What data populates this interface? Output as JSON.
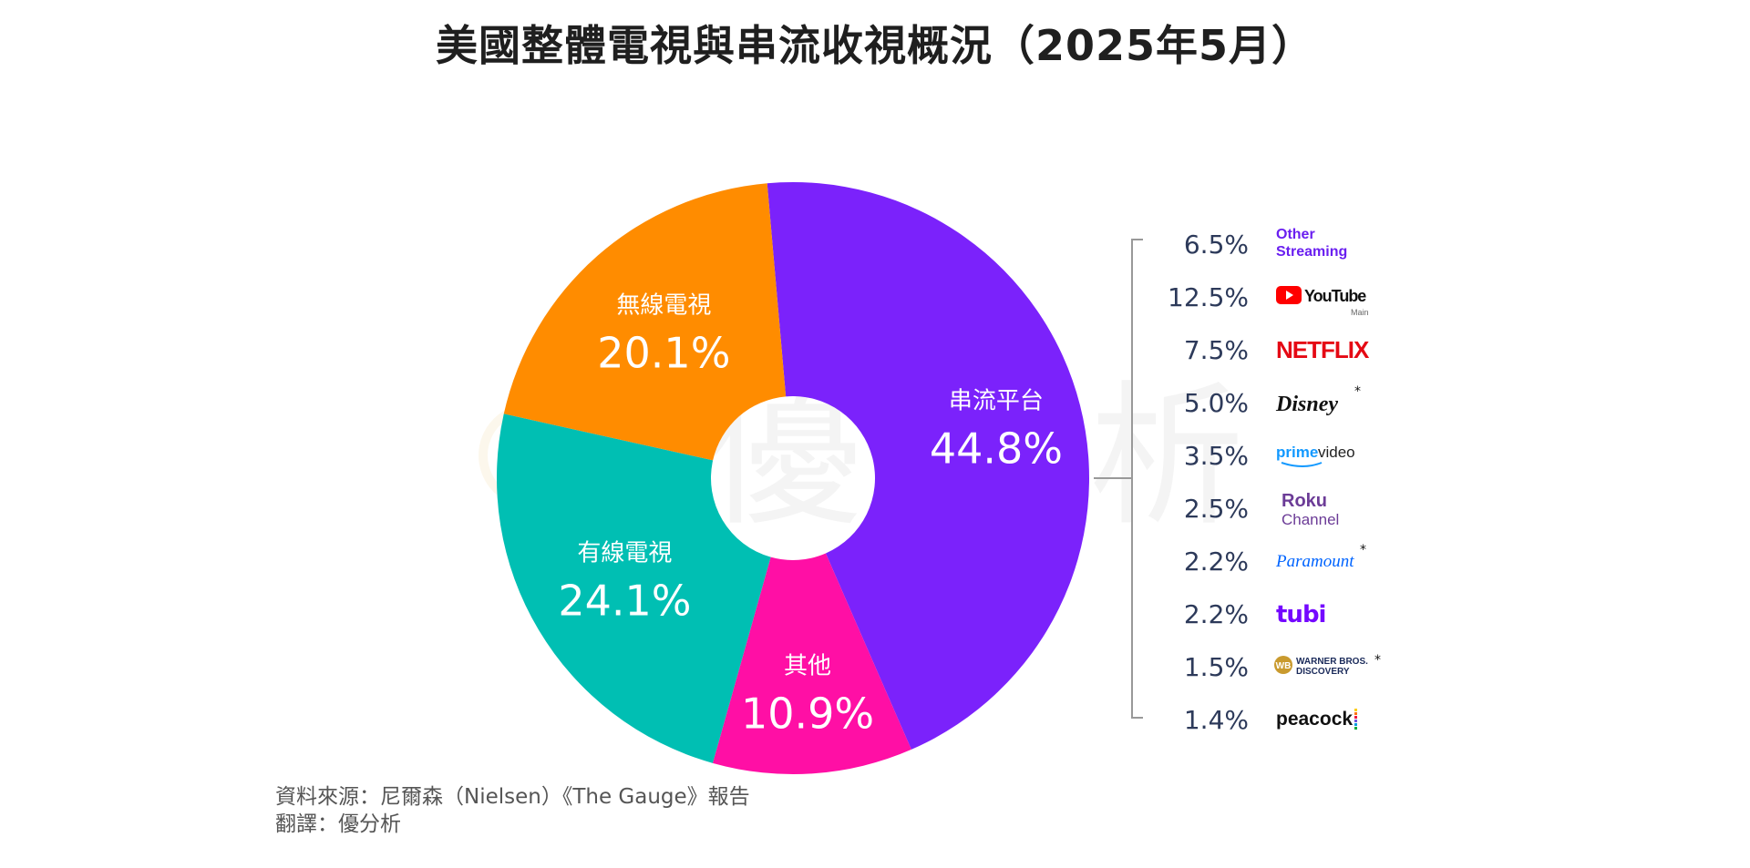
{
  "title": "美國整體電視與串流收視概況（2025年5月）",
  "watermark": "優分析",
  "colors": {
    "streaming": "#7b22fb",
    "broadcast": "#ff8c00",
    "cable": "#00bfb3",
    "other": "#ff0fa5",
    "breakdown_text": "#2d3a5a",
    "bracket": "#999999"
  },
  "chart_data": {
    "type": "pie",
    "segments": [
      {
        "key": "streaming",
        "label": "串流平台",
        "value": 44.8,
        "value_label": "44.8%"
      },
      {
        "key": "other",
        "label": "其他",
        "value": 10.9,
        "value_label": "10.9%"
      },
      {
        "key": "cable",
        "label": "有線電視",
        "value": 24.1,
        "value_label": "24.1%"
      },
      {
        "key": "broadcast",
        "label": "無線電視",
        "value": 20.1,
        "value_label": "20.1%"
      }
    ],
    "streaming_breakdown": [
      {
        "platform": "Other Streaming",
        "value": 6.5,
        "value_label": "6.5%",
        "icon": "other-streaming-logo"
      },
      {
        "platform": "YouTube",
        "value": 12.5,
        "value_label": "12.5%",
        "icon": "youtube-logo",
        "sub": "Main"
      },
      {
        "platform": "NETFLIX",
        "value": 7.5,
        "value_label": "7.5%",
        "icon": "netflix-logo"
      },
      {
        "platform": "Disney",
        "value": 5.0,
        "value_label": "5.0%",
        "icon": "disney-logo"
      },
      {
        "platform": "prime video",
        "value": 3.5,
        "value_label": "3.5%",
        "icon": "prime-video-logo"
      },
      {
        "platform": "Roku Channel",
        "value": 2.5,
        "value_label": "2.5%",
        "icon": "roku-channel-logo"
      },
      {
        "platform": "Paramount",
        "value": 2.2,
        "value_label": "2.2%",
        "icon": "paramount-logo"
      },
      {
        "platform": "tubi",
        "value": 2.2,
        "value_label": "2.2%",
        "icon": "tubi-logo"
      },
      {
        "platform": "WARNER BROS. DISCOVERY",
        "value": 1.5,
        "value_label": "1.5%",
        "icon": "warner-bros-discovery-logo"
      },
      {
        "platform": "peacock",
        "value": 1.4,
        "value_label": "1.4%",
        "icon": "peacock-logo"
      }
    ]
  },
  "source": {
    "line1": "資料來源：尼爾森（Nielsen）《The Gauge》報告",
    "line2": "翻譯：優分析"
  }
}
